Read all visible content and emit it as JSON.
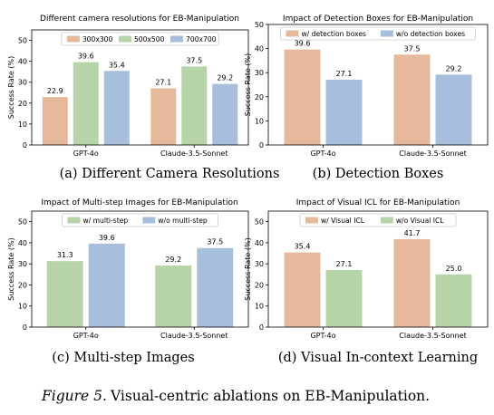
{
  "chart_data": [
    {
      "type": "bar",
      "title": "Different camera resolutions for EB-Manipulation",
      "subcaption": "(a) Different Camera Resolutions",
      "ylabel": "Success Rate (%)",
      "ylim": [
        0,
        55
      ],
      "yticks": [
        0,
        10,
        20,
        30,
        40,
        50
      ],
      "categories": [
        "GPT-4o",
        "Claude-3.5-Sonnet"
      ],
      "legend": {
        "location": "top",
        "columns": 3
      },
      "series": [
        {
          "name": "300x300",
          "color": "#e6b89c",
          "values": [
            22.9,
            27.1
          ]
        },
        {
          "name": "500x500",
          "color": "#b6d4a8",
          "values": [
            39.6,
            37.5
          ]
        },
        {
          "name": "700x700",
          "color": "#a7bfdc",
          "values": [
            35.4,
            29.2
          ]
        }
      ]
    },
    {
      "type": "bar",
      "title": "Impact of Detection Boxes for EB-Manipulation",
      "subcaption": "(b) Detection Boxes",
      "ylabel": "Success Rate (%)",
      "ylim": [
        0,
        50
      ],
      "yticks": [
        0,
        10,
        20,
        30,
        40,
        50
      ],
      "categories": [
        "GPT-4o",
        "Claude-3.5-Sonnet"
      ],
      "legend": {
        "location": "top",
        "columns": 2
      },
      "series": [
        {
          "name": "w/ detection boxes",
          "color": "#e6b89c",
          "values": [
            39.6,
            37.5
          ]
        },
        {
          "name": "w/o detection boxes",
          "color": "#a7bfdc",
          "values": [
            27.1,
            29.2
          ]
        }
      ]
    },
    {
      "type": "bar",
      "title": "Impact of Multi-step Images for EB-Manipulation",
      "subcaption": "(c) Multi-step Images",
      "ylabel": "Success Rate (%)",
      "ylim": [
        0,
        55
      ],
      "yticks": [
        0,
        10,
        20,
        30,
        40,
        50
      ],
      "categories": [
        "GPT-4o",
        "Claude-3.5-Sonnet"
      ],
      "legend": {
        "location": "top",
        "columns": 2
      },
      "series": [
        {
          "name": "w/ multi-step",
          "color": "#b6d4a8",
          "values": [
            31.3,
            29.2
          ]
        },
        {
          "name": "w/o multi-step",
          "color": "#a7bfdc",
          "values": [
            39.6,
            37.5
          ]
        }
      ]
    },
    {
      "type": "bar",
      "title": "Impact of Visual ICL for EB-Manipulation",
      "subcaption": "(d) Visual In-context Learning",
      "ylabel": "Success Rate (%)",
      "ylim": [
        0,
        55
      ],
      "yticks": [
        0,
        10,
        20,
        30,
        40,
        50
      ],
      "categories": [
        "GPT-4o",
        "Claude-3.5-Sonnet"
      ],
      "legend": {
        "location": "top",
        "columns": 2
      },
      "series": [
        {
          "name": "w/ Visual ICL",
          "color": "#e6b89c",
          "values": [
            35.4,
            41.7
          ]
        },
        {
          "name": "w/o Visual ICL",
          "color": "#b6d4a8",
          "values": [
            27.1,
            25.0
          ]
        }
      ]
    }
  ],
  "caption": {
    "label": "Figure 5.",
    "text": "Visual-centric ablations on EB-Manipulation."
  }
}
